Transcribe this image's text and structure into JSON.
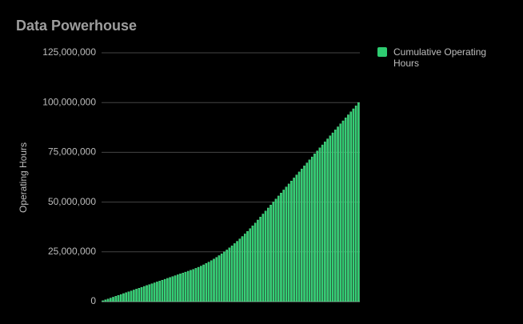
{
  "chart_data": {
    "type": "bar",
    "title": "Data Powerhouse",
    "ylabel": "Operating Hours",
    "categories": [
      null,
      null,
      null,
      null,
      null,
      null,
      null,
      null,
      null,
      null,
      null,
      null,
      null,
      null,
      null,
      null,
      null,
      null,
      null,
      null,
      null,
      null,
      null,
      null,
      null,
      null,
      null,
      null,
      null,
      null,
      null,
      null,
      null,
      null,
      null,
      null,
      null,
      null,
      null,
      null,
      null,
      null,
      null,
      null,
      null,
      null,
      null,
      null,
      null,
      null,
      null,
      null,
      null,
      null,
      null,
      null,
      null,
      null,
      null,
      null,
      null,
      null,
      null,
      null,
      null,
      null,
      null,
      null,
      null,
      null,
      null,
      null,
      null,
      null,
      null,
      null,
      null,
      null,
      null,
      null,
      null,
      null,
      null,
      null,
      null,
      null,
      null,
      null,
      null,
      null,
      null,
      null,
      null,
      null,
      null,
      null,
      null,
      null,
      null,
      null
    ],
    "series": [
      {
        "name": "Cumulative Operating Hours",
        "color": "#2ecc71",
        "values": [
          450000,
          900000,
          1350000,
          1800000,
          2250000,
          2700000,
          3150000,
          3600000,
          4050000,
          4500000,
          4950000,
          5400000,
          5850000,
          6300000,
          6750000,
          7200000,
          7650000,
          8100000,
          8550000,
          9000000,
          9450000,
          9900000,
          10350000,
          10800000,
          11250000,
          11700000,
          12150000,
          12600000,
          13050000,
          13500000,
          13950000,
          14400000,
          14850000,
          15300000,
          15750000,
          16220000,
          16730000,
          17280000,
          17870000,
          18500000,
          19170000,
          19880000,
          20630000,
          21420000,
          22250000,
          23120000,
          24030000,
          24980000,
          25970000,
          27000000,
          28070000,
          29180000,
          30330000,
          31520000,
          32750000,
          34020000,
          35330000,
          36680000,
          38070000,
          39500000,
          41010000,
          42520000,
          44030000,
          45540000,
          47050000,
          48560000,
          50070000,
          51580000,
          53090000,
          54600000,
          56110000,
          57620000,
          59130000,
          60640000,
          62150000,
          63660000,
          65170000,
          66680000,
          68190000,
          69700000,
          71210000,
          72720000,
          74230000,
          75740000,
          77250000,
          78760000,
          80270000,
          81780000,
          83290000,
          84800000,
          86310000,
          87820000,
          89330000,
          90840000,
          92350000,
          93860000,
          95370000,
          96880000,
          98390000,
          100000000
        ]
      }
    ],
    "ylim": [
      0,
      125000000
    ],
    "yticks": [
      0,
      {
        "value": 25000000,
        "label": "25,000,000"
      },
      {
        "value": 50000000,
        "label": "50,000,000"
      },
      {
        "value": 75000000,
        "label": "75,000,000"
      },
      {
        "value": 100000000,
        "label": "100,000,000"
      },
      {
        "value": 125000000,
        "label": "125,000,000"
      }
    ],
    "grid": true,
    "legend": "right"
  }
}
